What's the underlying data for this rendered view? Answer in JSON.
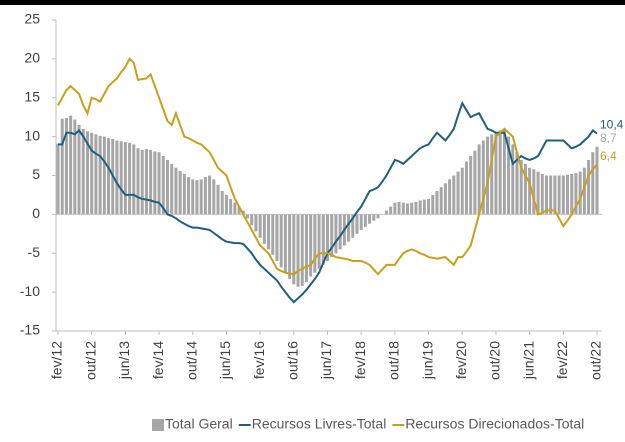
{
  "chart_data": {
    "type": "bar_line",
    "categories": [
      "fev/12",
      null,
      null,
      null,
      null,
      null,
      null,
      null,
      "out/12",
      null,
      null,
      null,
      null,
      null,
      null,
      null,
      "jun/13",
      null,
      null,
      null,
      null,
      null,
      null,
      null,
      "fev/14",
      null,
      null,
      null,
      null,
      null,
      null,
      null,
      "out/14",
      null,
      null,
      null,
      null,
      null,
      null,
      null,
      "jun/15",
      null,
      null,
      null,
      null,
      null,
      null,
      null,
      "fev/16",
      null,
      null,
      null,
      null,
      null,
      null,
      null,
      "out/16",
      null,
      null,
      null,
      null,
      null,
      null,
      null,
      "jun/17",
      null,
      null,
      null,
      null,
      null,
      null,
      null,
      "fev/18",
      null,
      null,
      null,
      null,
      null,
      null,
      null,
      "out/18",
      null,
      null,
      null,
      null,
      null,
      null,
      null,
      "jun/19",
      null,
      null,
      null,
      null,
      null,
      null,
      null,
      "fev/20",
      null,
      null,
      null,
      null,
      null,
      null,
      null,
      "out/20",
      null,
      null,
      null,
      null,
      null,
      null,
      null,
      "jun/21",
      null,
      null,
      null,
      null,
      null,
      null,
      null,
      "fev/22",
      null,
      null,
      null,
      null,
      null,
      null,
      null,
      "out/22"
    ],
    "series": [
      {
        "name": "Total Geral",
        "kind": "bar",
        "color": "#a6a6a6",
        "last_value_label": "8,7",
        "values": [
          9.1,
          12.3,
          12.4,
          12.7,
          12.2,
          11.5,
          11,
          10.7,
          10.5,
          10.3,
          10.1,
          10,
          9.8,
          9.7,
          9.5,
          9.4,
          9.3,
          9.2,
          9,
          8.5,
          8.3,
          8.4,
          8.3,
          8.1,
          8,
          7.5,
          7,
          6.5,
          6,
          5.6,
          5.2,
          4.8,
          4.5,
          4.4,
          4.5,
          4.8,
          5,
          4.5,
          3.8,
          3,
          2.5,
          2,
          1.5,
          1,
          0.5,
          -0.5,
          -1.4,
          -2.2,
          -3,
          -3.8,
          -4.5,
          -5.2,
          -6,
          -6.8,
          -7.6,
          -8.3,
          -9,
          -9.3,
          -9.2,
          -8.7,
          -8,
          -7.5,
          -7,
          -6.5,
          -6,
          -5.5,
          -5,
          -4.5,
          -4,
          -3.5,
          -3,
          -2.5,
          -2,
          -1.6,
          -1.2,
          -0.8,
          -0.5,
          0,
          0.5,
          1,
          1.5,
          1.6,
          1.5,
          1.4,
          1.5,
          1.6,
          1.8,
          1.9,
          2,
          2.5,
          3,
          3.5,
          4,
          4.5,
          5,
          5.5,
          6,
          6.8,
          7.5,
          8.2,
          9,
          9.5,
          10,
          10.3,
          10.5,
          10.8,
          11,
          10,
          9,
          8,
          7,
          6.5,
          6,
          5.8,
          5.5,
          5.2,
          5,
          5,
          5,
          5,
          5,
          5.1,
          5.2,
          5.3,
          5.5,
          6,
          7,
          8,
          8.7
        ]
      },
      {
        "name": "Recursos Livres-Total",
        "kind": "line",
        "color": "#1f5f7f",
        "last_value_label": "10,4",
        "values": [
          9,
          9,
          10.5,
          10.5,
          10.3,
          10.8,
          10,
          9.1,
          8.2,
          7.8,
          7.5,
          6.8,
          6,
          5,
          4,
          3.2,
          2.5,
          2.5,
          2.5,
          2.2,
          2,
          1.9,
          1.8,
          1.6,
          1.5,
          0.8,
          0,
          -0.2,
          -0.5,
          -0.9,
          -1.2,
          -1.5,
          -1.7,
          -1.7,
          -1.8,
          -1.9,
          -2,
          -2.4,
          -2.8,
          -3.2,
          -3.5,
          -3.6,
          -3.7,
          -3.7,
          -3.8,
          -4.4,
          -5,
          -5.8,
          -6.5,
          -7,
          -7.5,
          -8,
          -8.5,
          -9.3,
          -10,
          -10.7,
          -11.3,
          -10.8,
          -10.3,
          -9.7,
          -9,
          -8.3,
          -7.5,
          -6.2,
          -5,
          -4.3,
          -3.5,
          -2.8,
          -2,
          -1.2,
          -0.5,
          0.3,
          1,
          2,
          3,
          3.2,
          3.5,
          4.2,
          5,
          6,
          7,
          6.8,
          6.5,
          7,
          7.5,
          8,
          8.5,
          8.8,
          9,
          9.8,
          10.5,
          10,
          9.5,
          10.2,
          11,
          12.7,
          14.3,
          13.4,
          12.5,
          12.8,
          13,
          12,
          11,
          10.8,
          10.5,
          10.5,
          10.5,
          8.5,
          6.5,
          7,
          7.5,
          7.2,
          7,
          7.2,
          7.5,
          8.5,
          9.5,
          9.5,
          9.5,
          9.5,
          9.5,
          9,
          8.5,
          8.7,
          9,
          9.5,
          10,
          10.8,
          10.4
        ]
      },
      {
        "name": "Recursos Direcionados-Total",
        "kind": "line",
        "color": "#c9a01c",
        "last_value_label": "6,4",
        "values": [
          14,
          15,
          16,
          16.5,
          16,
          15.5,
          14,
          13,
          15,
          14.8,
          14.5,
          15.5,
          16.5,
          17,
          17.5,
          18.3,
          19,
          20,
          19.5,
          17.3,
          17.4,
          17.5,
          18,
          16.5,
          15,
          13.5,
          12,
          11.5,
          13,
          11.5,
          10,
          9.8,
          9.5,
          9.2,
          9,
          8.5,
          8,
          7,
          6,
          5.5,
          5,
          3.5,
          2,
          1,
          0,
          -1,
          -2,
          -3,
          -4,
          -4.5,
          -5,
          -6,
          -7,
          -7.3,
          -7.5,
          -7.6,
          -7.7,
          -7.3,
          -7,
          -6.7,
          -6.5,
          -5.7,
          -5,
          -5,
          -5,
          -5.2,
          -5.5,
          -5.6,
          -5.7,
          -5.8,
          -6,
          -6,
          -6,
          -6.2,
          -6.5,
          -7.1,
          -7.7,
          -7.1,
          -6.5,
          -6.5,
          -6.5,
          -5.7,
          -5,
          -4.7,
          -4.5,
          -4.7,
          -5,
          -5.2,
          -5.5,
          -5.6,
          -5.7,
          -5.6,
          -5.5,
          -6,
          -6.5,
          -5.5,
          -5.5,
          -4.8,
          -4,
          -2,
          0,
          2,
          4,
          7,
          10,
          10.5,
          11,
          10.5,
          10,
          8,
          6,
          5,
          4,
          2,
          0,
          0.2,
          0.5,
          0.5,
          0.5,
          -0.5,
          -1.5,
          -0.8,
          0,
          1,
          2,
          3.5,
          5,
          5.8,
          6.4
        ]
      }
    ],
    "ylim": [
      -15,
      25
    ],
    "yticks": [
      -15,
      -10,
      -5,
      0,
      5,
      10,
      15,
      20,
      25
    ]
  }
}
